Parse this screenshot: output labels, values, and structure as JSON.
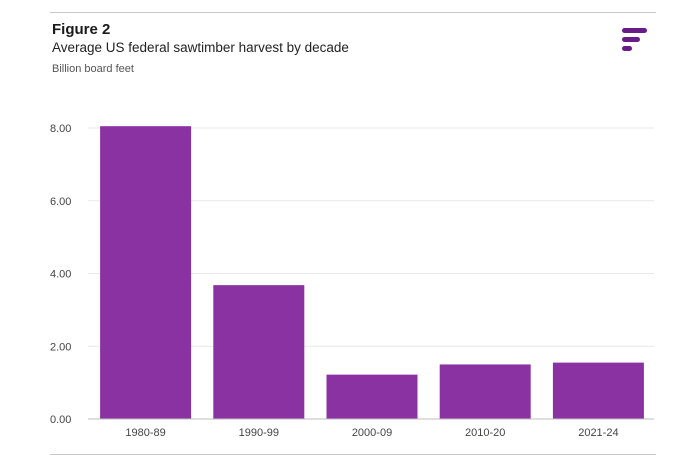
{
  "header": {
    "figure_label": "Figure 2",
    "title": "Average US federal sawtimber harvest by decade",
    "unit": "Billion board feet"
  },
  "logo": {
    "icon": "brand-f-logo-icon",
    "color": "#6a1b8a"
  },
  "colors": {
    "bar": "#8a32a2",
    "grid": "#e8e8e8",
    "axis": "#bdbdbd"
  },
  "chart_data": {
    "type": "bar",
    "title": "Average US federal sawtimber harvest by decade",
    "xlabel": "",
    "ylabel": "Billion board feet",
    "categories": [
      "1980-89",
      "1990-99",
      "2000-09",
      "2010-20",
      "2021-24"
    ],
    "values": [
      8.05,
      3.68,
      1.22,
      1.5,
      1.55
    ],
    "ylim": [
      0,
      8
    ],
    "yticks": [
      0,
      2,
      4,
      6,
      8
    ],
    "ytick_labels": [
      "0.00",
      "2.00",
      "4.00",
      "6.00",
      "8.00"
    ],
    "grid": true,
    "legend": "none"
  }
}
